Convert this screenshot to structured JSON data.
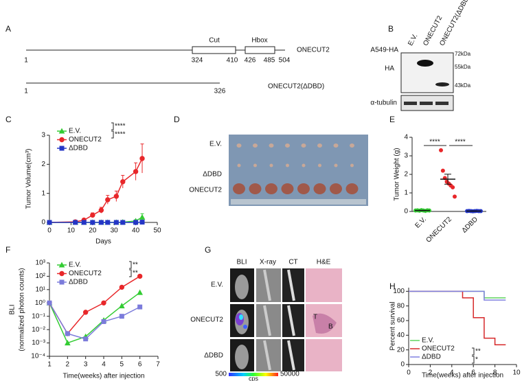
{
  "figure_a": {
    "panel": "A",
    "full": {
      "name": "ONECUT2",
      "start": "1",
      "cut_start": "324",
      "cut_end": "410",
      "hbox_start": "426",
      "hbox_end": "485",
      "end": "504"
    },
    "domains": {
      "cut": "Cut",
      "hbox": "Hbox"
    },
    "truncated": {
      "name": "ONECUT2(ΔDBD)",
      "start": "1",
      "end": "326"
    }
  },
  "figure_b": {
    "panel": "B",
    "cell_line": "A549-HA",
    "lanes": [
      "E.V.",
      "ONECUT2",
      "ONECUT2(ΔDBD)"
    ],
    "blots": [
      "HA",
      "α-tubulin"
    ],
    "markers": [
      "72kDa",
      "55kDa",
      "43kDa"
    ]
  },
  "figure_d": {
    "panel": "D",
    "rows": [
      "E.V.",
      "ΔDBD",
      "ONECUT2"
    ]
  },
  "figure_g": {
    "panel": "G",
    "columns": [
      "BLI",
      "X-ray",
      "CT",
      "H&E"
    ],
    "rows": [
      "E.V.",
      "ONECUT2",
      "ΔDBD"
    ],
    "colorbar": {
      "min": "500",
      "max": "50000",
      "unit": "cps"
    },
    "tissue_labels": [
      "T",
      "B"
    ]
  },
  "chart_data": [
    {
      "type": "line",
      "panel": "C",
      "xlabel": "Days",
      "ylabel": "Tumor Volume(cm³)",
      "x": [
        0,
        12,
        16,
        20,
        24,
        27,
        31,
        34,
        40,
        43
      ],
      "xlim": [
        0,
        50
      ],
      "xticks": [
        0,
        10,
        20,
        30,
        40,
        50
      ],
      "ylim": [
        0,
        3
      ],
      "yticks": [
        0,
        1,
        2,
        3
      ],
      "series": [
        {
          "name": "E.V.",
          "color": "#33cc33",
          "marker": "triangle",
          "values": [
            0,
            0,
            0,
            0,
            0,
            0,
            0,
            0.01,
            0.05,
            0.18
          ],
          "errors": [
            0,
            0,
            0,
            0,
            0,
            0,
            0,
            0.01,
            0.04,
            0.12
          ]
        },
        {
          "name": "ONECUT2",
          "color": "#e8272a",
          "marker": "circle",
          "values": [
            0,
            0.02,
            0.08,
            0.25,
            0.42,
            0.78,
            0.9,
            1.4,
            1.75,
            2.2
          ],
          "errors": [
            0,
            0.02,
            0.04,
            0.08,
            0.1,
            0.15,
            0.18,
            0.22,
            0.3,
            0.5
          ]
        },
        {
          "name": "ΔDBD",
          "color": "#2436c6",
          "marker": "square",
          "values": [
            0,
            0,
            0,
            0,
            0,
            0,
            0,
            0,
            0,
            0.01
          ],
          "errors": [
            0,
            0,
            0,
            0,
            0,
            0,
            0,
            0,
            0,
            0.01
          ]
        }
      ],
      "annotations": [
        "****",
        "****"
      ]
    },
    {
      "type": "dot",
      "panel": "E",
      "ylabel": "Tumor Weight (g)",
      "categories": [
        "E.V.",
        "ONECUT2",
        "ΔDBD"
      ],
      "colors": [
        "#33cc33",
        "#e8272a",
        "#2436c6"
      ],
      "points": [
        [
          0.05,
          0.06,
          0.04,
          0.07,
          0.05,
          0.03,
          0.06,
          0.05
        ],
        [
          3.3,
          2.2,
          1.8,
          1.6,
          1.5,
          1.4,
          1.3,
          0.8
        ],
        [
          0.02,
          0.03,
          0.02,
          0.01,
          0.02,
          0.03,
          0.02,
          0.02
        ]
      ],
      "means": [
        0.05,
        1.74,
        0.02
      ],
      "sem": [
        0.01,
        0.27,
        0.01
      ],
      "ylim": [
        0,
        4
      ],
      "yticks": [
        0,
        1,
        2,
        3,
        4
      ],
      "annotations": [
        "****",
        "****"
      ]
    },
    {
      "type": "line",
      "panel": "F",
      "xlabel": "Time(weeks) after injection",
      "ylabel": "BLI",
      "ylabel_sub": "(normalized photon counts)",
      "log_y": true,
      "x": [
        1,
        2,
        3,
        4,
        5,
        6
      ],
      "xlim": [
        1,
        7
      ],
      "xticks": [
        1,
        2,
        3,
        4,
        5,
        6,
        7
      ],
      "ylim": [
        0.0001,
        1000
      ],
      "yticks": [
        {
          "value": 0.0001,
          "label": "10⁻⁴"
        },
        {
          "value": 0.001,
          "label": "10⁻³"
        },
        {
          "value": 0.01,
          "label": "10⁻²"
        },
        {
          "value": 0.1,
          "label": "10⁻¹"
        },
        {
          "value": 1,
          "label": "10⁰"
        },
        {
          "value": 10,
          "label": "10¹"
        },
        {
          "value": 100,
          "label": "10²"
        },
        {
          "value": 1000,
          "label": "10³"
        }
      ],
      "series": [
        {
          "name": "E.V.",
          "color": "#33cc33",
          "marker": "triangle",
          "values": [
            1,
            0.001,
            0.003,
            0.05,
            0.6,
            6
          ]
        },
        {
          "name": "ONECUT2",
          "color": "#e8272a",
          "marker": "circle",
          "values": [
            1,
            0.005,
            0.2,
            1,
            15,
            100
          ]
        },
        {
          "name": "ΔDBD",
          "color": "#7b7bdb",
          "marker": "square",
          "values": [
            1,
            0.005,
            0.002,
            0.04,
            0.1,
            0.5
          ]
        }
      ],
      "annotations": [
        "**",
        "**"
      ]
    },
    {
      "type": "step",
      "panel": "H",
      "xlabel": "Time(weeks) after injection",
      "ylabel": "Percent survival",
      "xlim": [
        0,
        10
      ],
      "xticks": [
        0,
        2,
        4,
        6,
        8,
        10
      ],
      "ylim": [
        0,
        105
      ],
      "yticks": [
        0,
        20,
        40,
        60,
        80,
        100
      ],
      "series": [
        {
          "name": "E.V.",
          "color": "#5fd35f",
          "marker": "none",
          "x": [
            0,
            7,
            9
          ],
          "values": [
            100,
            91,
            91
          ]
        },
        {
          "name": "ONECUT2",
          "color": "#d62728",
          "marker": "none",
          "x": [
            0,
            5,
            6,
            7,
            8,
            9
          ],
          "values": [
            100,
            91,
            64,
            36,
            27,
            27
          ]
        },
        {
          "name": "ΔDBD",
          "color": "#8080e0",
          "marker": "none",
          "x": [
            0,
            7,
            9
          ],
          "values": [
            100,
            88,
            88
          ]
        }
      ],
      "annotations": [
        "**",
        "*"
      ]
    }
  ]
}
